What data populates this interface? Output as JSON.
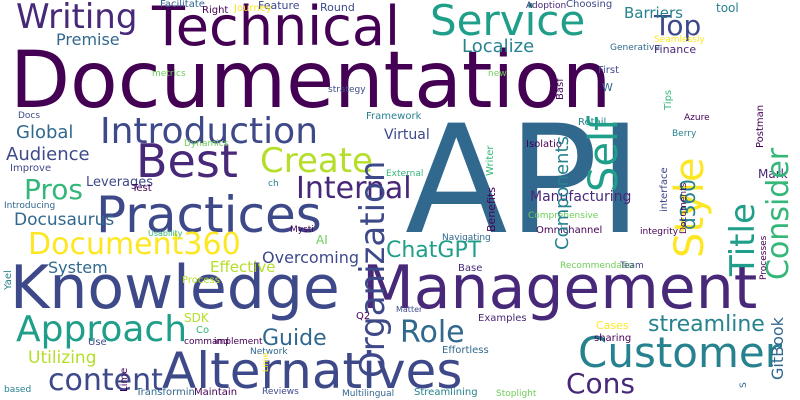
{
  "colors": {
    "background": "#ffffff",
    "deep_purple": "#440154",
    "purple": "#482878",
    "indigo": "#3e4989",
    "blue": "#31688e",
    "teal": "#26828e",
    "green_teal": "#1f9e89",
    "green": "#35b779",
    "light_green": "#6ece58",
    "yellow_green": "#b5de2b",
    "yellow": "#fde725"
  },
  "words": [
    "API",
    "Documentation",
    "Knowledge",
    "Management",
    "Alternatives",
    "Technical",
    "Practices",
    "Best",
    "Service",
    "Customer",
    "Introduction",
    "Approach",
    "Create",
    "Document360",
    "Role",
    "Internal",
    "content",
    "Pros",
    "Cons",
    "Top",
    "Writing",
    "ChatGPT",
    "streamline",
    "Guide",
    "System",
    "Audience",
    "Localize",
    "Global",
    "Utilizing",
    "Docusaurus",
    "Overcoming",
    "Effective",
    "Premise",
    "Barriers",
    "Feature",
    "Round",
    "tool",
    "Choosing",
    "Adoption",
    "Facilitate",
    "Right",
    "Journey",
    "Seamlessly",
    "Generative",
    "Finance",
    "metrics",
    "new",
    "First",
    "W",
    "Docs",
    "strategy",
    "Framework",
    "Retail",
    "Azure",
    "Berry",
    "Mark",
    "Dynamics",
    "Isolatio",
    "Improve",
    "Leverages",
    "Test",
    "ch",
    "External",
    "Virtual",
    "Manufacturing",
    "AI",
    "Introducing",
    "Usability",
    "Mysti",
    "Comprehensive",
    "integrity",
    "Navigating",
    "Omnichannel",
    "Base",
    "Recommendatio",
    "Team",
    "Use",
    "SDK",
    "Co",
    "Q2",
    "Examples",
    "Matter",
    "Cases",
    "sharing",
    "command",
    "implement",
    "Effortless",
    "Network",
    "based",
    "Transformin",
    "Maintain",
    "Reviews",
    "Multilingual",
    "Streamlining",
    "Stoplight",
    "Style",
    "Consider",
    "Organization",
    "Title",
    "Process",
    "Self",
    "d360",
    "Components",
    "GitBook",
    "Tips",
    "Basf",
    "Postman",
    "Writer",
    "Benefits",
    "interface",
    "Documents",
    "Processes",
    "Yael",
    "Lime",
    "S"
  ]
}
